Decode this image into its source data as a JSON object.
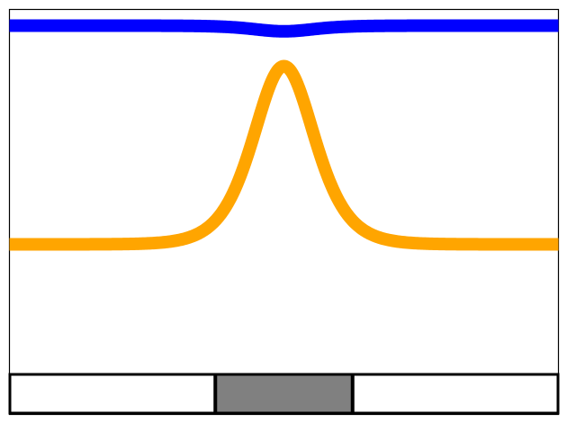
{
  "chart_data": {
    "type": "line",
    "grid": false,
    "legend": "none",
    "axes_visible": false,
    "xlim": [
      -1,
      1
    ],
    "ylim": [
      0,
      1
    ],
    "series": [
      {
        "color": "#0000ff",
        "curve": "dip",
        "baseline": 0.96,
        "peak": 0.946,
        "peak_x": 0,
        "width": 0.15
      },
      {
        "color": "#ffa500",
        "curve": "peak",
        "baseline": 0.42,
        "peak": 0.86,
        "peak_x": 0,
        "width": 0.15
      }
    ],
    "bottom_bar": {
      "segments": [
        {
          "x_start": -1,
          "x_end": -0.25,
          "fill": "#ffffff"
        },
        {
          "x_start": -0.25,
          "x_end": 0.25,
          "fill": "#808080"
        },
        {
          "x_start": 0.25,
          "x_end": 1,
          "fill": "#ffffff"
        }
      ]
    }
  }
}
